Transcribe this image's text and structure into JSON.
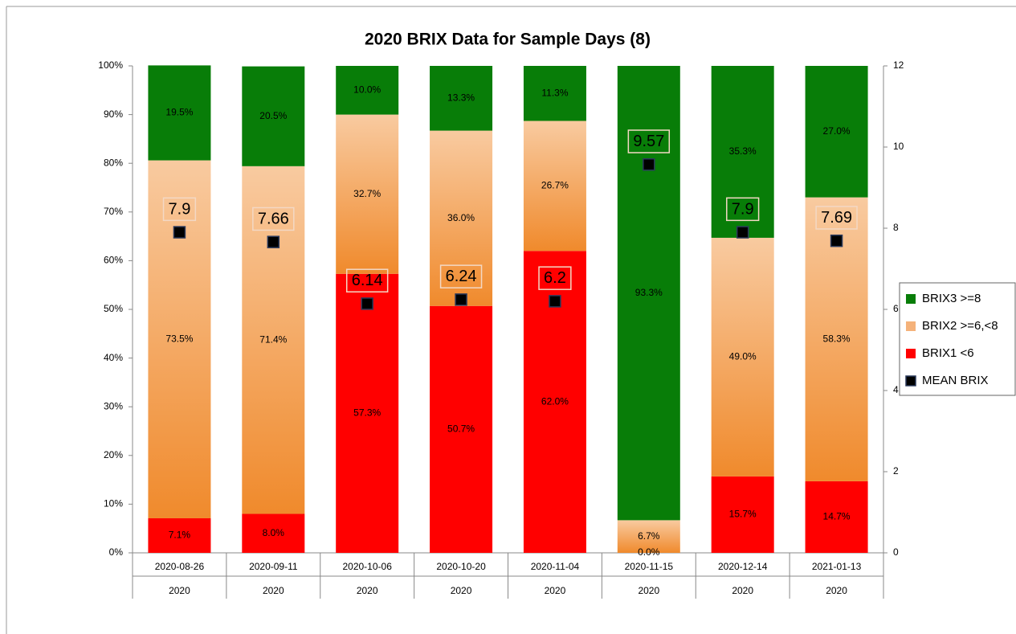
{
  "chart_data": {
    "type": "bar",
    "stacked": true,
    "title": "2020 BRIX Data for Sample Days (8)",
    "categories": [
      "2020-08-26",
      "2020-09-11",
      "2020-10-06",
      "2020-10-20",
      "2020-11-04",
      "2020-11-15",
      "2020-12-14",
      "2021-01-13"
    ],
    "groups": [
      "2020",
      "2020",
      "2020",
      "2020",
      "2020",
      "2020",
      "2020",
      "2020"
    ],
    "series": [
      {
        "name": "BRIX1 <6",
        "color": "#ff0000",
        "values": [
          7.1,
          8.0,
          57.3,
          50.7,
          62.0,
          0.0,
          15.7,
          14.7
        ],
        "value_labels": [
          "7.1%",
          "8.0%",
          "57.3%",
          "50.7%",
          "62.0%",
          "0.0%",
          "15.7%",
          "14.7%"
        ]
      },
      {
        "name": "BRIX2 >=6,<8",
        "color": "#f08a2c",
        "gradient": true,
        "values": [
          73.5,
          71.4,
          32.7,
          36.0,
          26.7,
          6.7,
          49.0,
          58.3
        ],
        "value_labels": [
          "73.5%",
          "71.4%",
          "32.7%",
          "36.0%",
          "26.7%",
          "6.7%",
          "49.0%",
          "58.3%"
        ]
      },
      {
        "name": "BRIX3 >=8",
        "color": "#087d08",
        "values": [
          19.5,
          20.5,
          10.0,
          13.3,
          11.3,
          93.3,
          35.3,
          27.0
        ],
        "value_labels": [
          "19.5%",
          "20.5%",
          "10.0%",
          "13.3%",
          "11.3%",
          "93.3%",
          "35.3%",
          "27.0%"
        ]
      },
      {
        "name": "MEAN BRIX",
        "color": "#000000",
        "type": "scatter",
        "axis": "y2",
        "values": [
          7.9,
          7.66,
          6.14,
          6.24,
          6.2,
          9.57,
          7.9,
          7.69
        ]
      }
    ],
    "ylim": [
      0,
      100
    ],
    "yticks": [
      {
        "value": 0,
        "label": "0%"
      },
      {
        "value": 10,
        "label": "10%"
      },
      {
        "value": 20,
        "label": "20%"
      },
      {
        "value": 30,
        "label": "30%"
      },
      {
        "value": 40,
        "label": "40%"
      },
      {
        "value": 50,
        "label": "50%"
      },
      {
        "value": 60,
        "label": "60%"
      },
      {
        "value": 70,
        "label": "70%"
      },
      {
        "value": 80,
        "label": "80%"
      },
      {
        "value": 90,
        "label": "90%"
      },
      {
        "value": 100,
        "label": "100%"
      }
    ],
    "y2lim": [
      0,
      12
    ],
    "y2ticks": [
      0,
      2,
      4,
      6,
      8,
      10,
      12
    ],
    "grid": false,
    "legend": "right"
  }
}
